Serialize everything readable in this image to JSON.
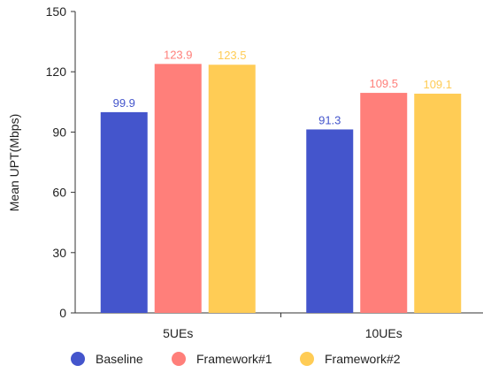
{
  "chart_data": {
    "type": "bar",
    "ylabel": "Mean UPT(Mbps)",
    "ylim": [
      0,
      150
    ],
    "yticks": [
      0,
      30,
      60,
      90,
      120,
      150
    ],
    "categories": [
      "5UEs",
      "10UEs"
    ],
    "series": [
      {
        "name": "Baseline",
        "color": "#4455cc",
        "values": [
          99.9,
          91.3
        ]
      },
      {
        "name": "Framework#1",
        "color": "#ff7f7a",
        "values": [
          123.9,
          109.5
        ]
      },
      {
        "name": "Framework#2",
        "color": "#ffcc55",
        "values": [
          123.5,
          109.1
        ]
      }
    ],
    "legend": "bottom",
    "grid": false
  }
}
